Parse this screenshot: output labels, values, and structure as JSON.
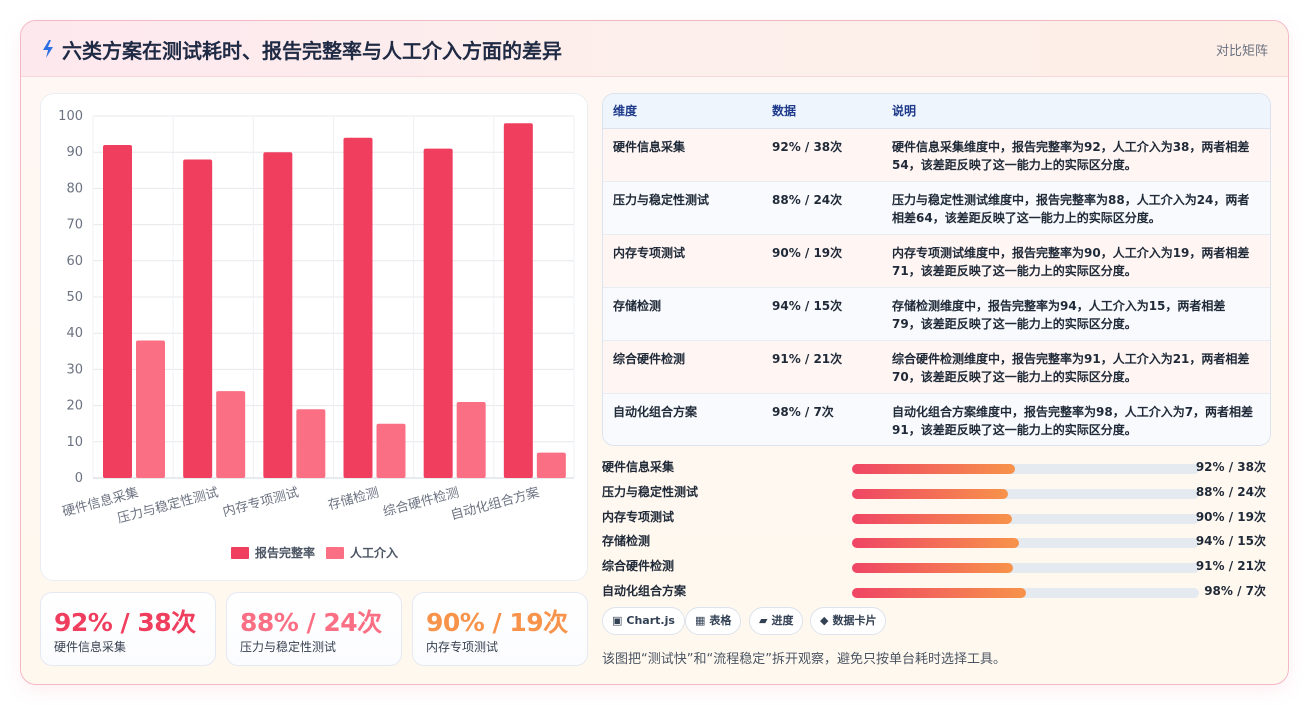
{
  "header": {
    "title": "六类方案在测试耗时、报告完整率与人工介入方面的差异",
    "tag": "对比矩阵"
  },
  "colors": {
    "series_a": "#f03e5e",
    "series_b": "#fb6f84",
    "accent_orange": "#f7934a"
  },
  "chart_data": {
    "type": "bar",
    "categories": [
      "硬件信息采集",
      "压力与稳定性测试",
      "内存专项测试",
      "存储检测",
      "综合硬件检测",
      "自动化组合方案"
    ],
    "series": [
      {
        "name": "报告完整率",
        "values": [
          92,
          88,
          90,
          94,
          91,
          98
        ]
      },
      {
        "name": "人工介入",
        "values": [
          38,
          24,
          19,
          15,
          21,
          7
        ]
      }
    ],
    "ylim": [
      0,
      100
    ],
    "yticks": [
      0,
      10,
      20,
      30,
      40,
      50,
      60,
      70,
      80,
      90,
      100
    ],
    "grid": true,
    "legend_position": "bottom"
  },
  "kpis": [
    {
      "value": "92% / 38次",
      "label": "硬件信息采集",
      "color": "#f03e5e"
    },
    {
      "value": "88% / 24次",
      "label": "压力与稳定性测试",
      "color": "#fb6f84"
    },
    {
      "value": "90% / 19次",
      "label": "内存专项测试",
      "color": "#f7934a"
    }
  ],
  "table": {
    "headers": [
      "维度",
      "数据",
      "说明"
    ],
    "rows": [
      {
        "dim": "硬件信息采集",
        "data": "92% / 38次",
        "desc": "硬件信息采集维度中，报告完整率为92，人工介入为38，两者相差54，该差距反映了这一能力上的实际区分度。"
      },
      {
        "dim": "压力与稳定性测试",
        "data": "88% / 24次",
        "desc": "压力与稳定性测试维度中，报告完整率为88，人工介入为24，两者相差64，该差距反映了这一能力上的实际区分度。"
      },
      {
        "dim": "内存专项测试",
        "data": "90% / 19次",
        "desc": "内存专项测试维度中，报告完整率为90，人工介入为19，两者相差71，该差距反映了这一能力上的实际区分度。"
      },
      {
        "dim": "存储检测",
        "data": "94% / 15次",
        "desc": "存储检测维度中，报告完整率为94，人工介入为15，两者相差79，该差距反映了这一能力上的实际区分度。"
      },
      {
        "dim": "综合硬件检测",
        "data": "91% / 21次",
        "desc": "综合硬件检测维度中，报告完整率为91，人工介入为21，两者相差70，该差距反映了这一能力上的实际区分度。"
      },
      {
        "dim": "自动化组合方案",
        "data": "98% / 7次",
        "desc": "自动化组合方案维度中，报告完整率为98，人工介入为7，两者相差91，该差距反映了这一能力上的实际区分度。"
      }
    ]
  },
  "progress": [
    {
      "label": "硬件信息采集",
      "value": "92% / 38次",
      "fill": 0.47
    },
    {
      "label": "压力与稳定性测试",
      "value": "88% / 24次",
      "fill": 0.45
    },
    {
      "label": "内存专项测试",
      "value": "90% / 19次",
      "fill": 0.46
    },
    {
      "label": "存储检测",
      "value": "94% / 15次",
      "fill": 0.48
    },
    {
      "label": "综合硬件检测",
      "value": "91% / 21次",
      "fill": 0.465
    },
    {
      "label": "自动化组合方案",
      "value": "98% / 7次",
      "fill": 0.5
    }
  ],
  "pills": [
    {
      "icon": "▣",
      "label": "Chart.js",
      "icon_name": "chart-icon"
    },
    {
      "icon": "▦",
      "label": "表格",
      "icon_name": "table-icon"
    },
    {
      "icon": "▰",
      "label": "进度",
      "icon_name": "progress-icon"
    },
    {
      "icon": "◆",
      "label": "数据卡片",
      "icon_name": "diamond-icon"
    }
  ],
  "note": "该图把“测试快”和“流程稳定”拆开观察，避免只按单台耗时选择工具。"
}
